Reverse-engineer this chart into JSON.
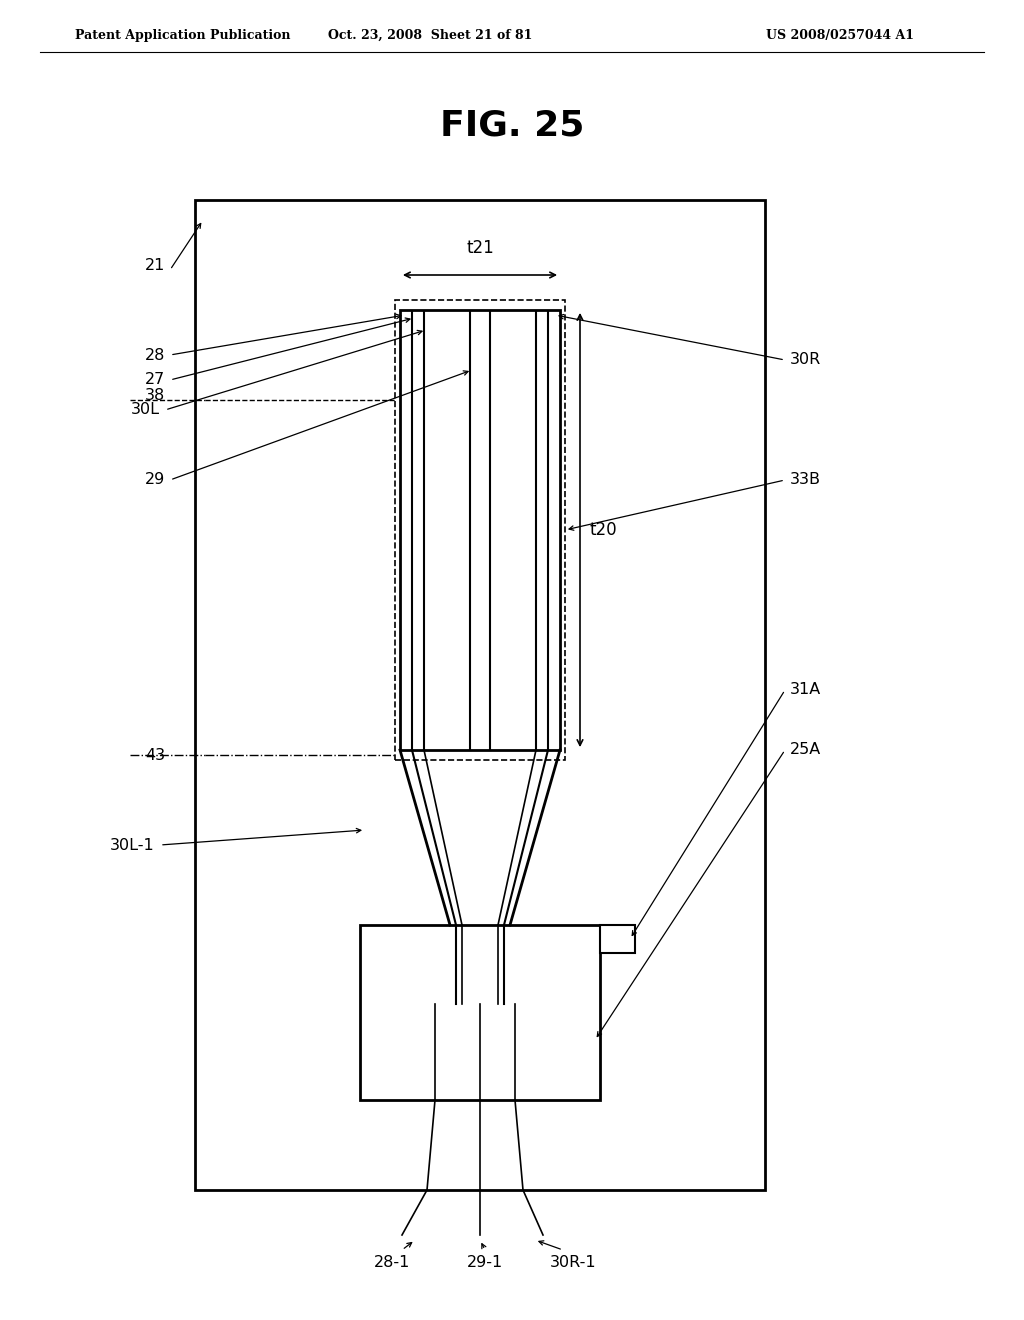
{
  "fig_title": "FIG. 25",
  "header_left": "Patent Application Publication",
  "header_center": "Oct. 23, 2008  Sheet 21 of 81",
  "header_right": "US 2008/0257044 A1",
  "bg_color": "#ffffff",
  "line_color": "#000000"
}
